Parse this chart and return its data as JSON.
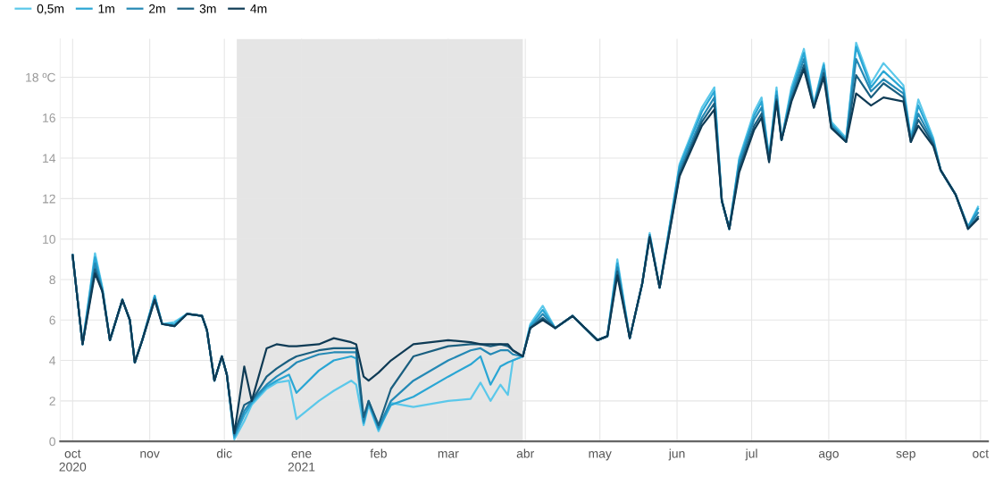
{
  "chart_data": {
    "type": "line",
    "x": [
      "2020-10-01",
      "2020-10-05",
      "2020-10-10",
      "2020-10-13",
      "2020-10-16",
      "2020-10-21",
      "2020-10-24",
      "2020-10-26",
      "2020-10-29",
      "2020-11-03",
      "2020-11-06",
      "2020-11-11",
      "2020-11-16",
      "2020-11-22",
      "2020-11-24",
      "2020-11-27",
      "2020-11-30",
      "2020-12-02",
      "2020-12-05",
      "2020-12-09",
      "2020-12-12",
      "2020-12-18",
      "2020-12-22",
      "2020-12-27",
      "2020-12-30",
      "2021-01-08",
      "2021-01-14",
      "2021-01-21",
      "2021-01-23",
      "2021-01-26",
      "2021-01-28",
      "2021-02-01",
      "2021-02-06",
      "2021-02-15",
      "2021-03-01",
      "2021-03-10",
      "2021-03-14",
      "2021-03-18",
      "2021-03-22",
      "2021-03-25",
      "2021-03-27",
      "2021-03-31",
      "2021-04-03",
      "2021-04-08",
      "2021-04-13",
      "2021-04-20",
      "2021-04-30",
      "2021-05-04",
      "2021-05-08",
      "2021-05-13",
      "2021-05-18",
      "2021-05-21",
      "2021-05-25",
      "2021-06-02",
      "2021-06-11",
      "2021-06-16",
      "2021-06-19",
      "2021-06-22",
      "2021-06-26",
      "2021-07-02",
      "2021-07-05",
      "2021-07-08",
      "2021-07-11",
      "2021-07-13",
      "2021-07-17",
      "2021-07-22",
      "2021-07-26",
      "2021-07-30",
      "2021-08-02",
      "2021-08-08",
      "2021-08-12",
      "2021-08-18",
      "2021-08-23",
      "2021-08-31",
      "2021-09-03",
      "2021-09-06",
      "2021-09-12",
      "2021-09-15",
      "2021-09-21",
      "2021-09-26",
      "2021-09-30"
    ],
    "series": [
      {
        "name": "0,5m",
        "color": "#5bc8ea",
        "values": [
          9.2,
          4.8,
          9.3,
          7.6,
          5.0,
          7.0,
          6.0,
          3.9,
          5.0,
          7.2,
          5.8,
          5.9,
          6.3,
          6.2,
          5.5,
          3.0,
          4.2,
          3.3,
          0.1,
          1.0,
          1.8,
          2.6,
          2.9,
          3.0,
          1.1,
          2.0,
          2.5,
          3.0,
          2.8,
          0.8,
          1.8,
          0.5,
          1.9,
          1.7,
          2.0,
          2.1,
          2.9,
          2.0,
          2.8,
          2.3,
          4.0,
          4.2,
          5.8,
          6.7,
          5.6,
          6.2,
          5.0,
          5.2,
          9.0,
          5.1,
          7.8,
          10.3,
          7.6,
          13.7,
          16.5,
          17.5,
          11.9,
          10.5,
          14.0,
          16.3,
          17.0,
          14.0,
          17.5,
          14.9,
          17.5,
          19.4,
          16.7,
          18.7,
          15.8,
          15.0,
          19.7,
          17.7,
          18.7,
          17.6,
          15.0,
          16.9,
          15.0,
          13.4,
          12.2,
          10.6,
          11.6
        ]
      },
      {
        "name": "1m",
        "color": "#2aa6d4",
        "values": [
          9.2,
          4.8,
          9.1,
          7.5,
          5.0,
          7.0,
          6.0,
          3.9,
          5.0,
          7.2,
          5.8,
          5.8,
          6.3,
          6.2,
          5.5,
          3.0,
          4.2,
          3.3,
          0.2,
          1.3,
          1.9,
          2.7,
          3.0,
          3.3,
          2.4,
          3.5,
          4.0,
          4.2,
          4.1,
          0.9,
          1.9,
          0.6,
          1.8,
          2.2,
          3.2,
          3.8,
          4.2,
          2.8,
          3.7,
          3.9,
          4.0,
          4.2,
          5.7,
          6.5,
          5.6,
          6.2,
          5.0,
          5.2,
          8.8,
          5.1,
          7.8,
          10.2,
          7.6,
          13.6,
          16.3,
          17.3,
          11.9,
          10.5,
          13.9,
          16.1,
          16.8,
          14.0,
          17.3,
          14.9,
          17.3,
          19.2,
          16.6,
          18.6,
          15.7,
          14.9,
          19.5,
          17.5,
          18.3,
          17.4,
          14.9,
          16.6,
          14.9,
          13.4,
          12.2,
          10.6,
          11.5
        ]
      },
      {
        "name": "2m",
        "color": "#2589b5",
        "values": [
          9.2,
          4.8,
          8.8,
          7.4,
          5.0,
          7.0,
          6.0,
          3.9,
          5.0,
          7.1,
          5.8,
          5.7,
          6.3,
          6.2,
          5.5,
          3.0,
          4.2,
          3.3,
          0.3,
          1.5,
          2.0,
          2.8,
          3.2,
          3.6,
          3.9,
          4.3,
          4.4,
          4.4,
          4.4,
          1.0,
          2.0,
          0.7,
          2.0,
          3.0,
          4.0,
          4.5,
          4.6,
          4.3,
          4.5,
          4.5,
          4.3,
          4.2,
          5.6,
          6.3,
          5.6,
          6.2,
          5.0,
          5.2,
          8.6,
          5.1,
          7.8,
          10.2,
          7.6,
          13.4,
          16.0,
          17.0,
          11.9,
          10.5,
          13.7,
          15.9,
          16.5,
          13.9,
          17.1,
          14.9,
          17.1,
          18.9,
          16.6,
          18.4,
          15.6,
          14.9,
          18.9,
          17.3,
          17.9,
          17.2,
          14.9,
          16.2,
          14.8,
          13.4,
          12.2,
          10.6,
          11.3
        ]
      },
      {
        "name": "3m",
        "color": "#1a5f80",
        "values": [
          9.2,
          4.8,
          8.5,
          7.4,
          5.0,
          7.0,
          6.0,
          3.9,
          5.0,
          7.0,
          5.8,
          5.7,
          6.3,
          6.2,
          5.5,
          3.0,
          4.2,
          3.3,
          0.4,
          1.8,
          2.0,
          3.2,
          3.6,
          4.0,
          4.2,
          4.5,
          4.6,
          4.6,
          4.6,
          1.2,
          2.0,
          0.8,
          2.6,
          4.2,
          4.7,
          4.8,
          4.8,
          4.7,
          4.8,
          4.7,
          4.5,
          4.2,
          5.6,
          6.1,
          5.6,
          6.2,
          5.0,
          5.2,
          8.4,
          5.1,
          7.8,
          10.1,
          7.6,
          13.2,
          15.8,
          16.7,
          11.9,
          10.5,
          13.5,
          15.6,
          16.2,
          13.9,
          16.9,
          14.9,
          16.9,
          18.6,
          16.5,
          18.2,
          15.5,
          14.8,
          18.1,
          17.0,
          17.7,
          17.0,
          14.8,
          15.9,
          14.7,
          13.4,
          12.2,
          10.5,
          11.1
        ]
      },
      {
        "name": "4m",
        "color": "#0f3b55",
        "values": [
          9.2,
          4.8,
          8.3,
          7.4,
          5.0,
          7.0,
          6.0,
          3.9,
          5.0,
          7.0,
          5.8,
          5.7,
          6.3,
          6.2,
          5.5,
          3.0,
          4.2,
          3.3,
          0.4,
          3.7,
          2.0,
          4.6,
          4.8,
          4.7,
          4.7,
          4.8,
          5.1,
          4.9,
          4.8,
          3.2,
          3.0,
          3.4,
          4.0,
          4.8,
          5.0,
          4.9,
          4.8,
          4.8,
          4.8,
          4.8,
          4.5,
          4.2,
          5.6,
          6.0,
          5.6,
          6.2,
          5.0,
          5.2,
          8.2,
          5.1,
          7.8,
          10.1,
          7.6,
          13.1,
          15.6,
          16.4,
          11.9,
          10.5,
          13.3,
          15.4,
          16.0,
          13.8,
          16.8,
          14.9,
          16.8,
          18.4,
          16.5,
          18.0,
          15.5,
          14.8,
          17.2,
          16.6,
          17.0,
          16.8,
          14.8,
          15.6,
          14.6,
          13.4,
          12.2,
          10.5,
          11.0
        ]
      }
    ],
    "xlim": [
      "2020-09-26",
      "2021-10-04"
    ],
    "xticks": [
      {
        "value": "2020-10-01",
        "label": "oct\n2020"
      },
      {
        "value": "2020-11-01",
        "label": "nov"
      },
      {
        "value": "2020-12-01",
        "label": "dic"
      },
      {
        "value": "2021-01-01",
        "label": "ene\n2021"
      },
      {
        "value": "2021-02-01",
        "label": "feb"
      },
      {
        "value": "2021-03-01",
        "label": "mar"
      },
      {
        "value": "2021-04-01",
        "label": "abr"
      },
      {
        "value": "2021-05-01",
        "label": "may"
      },
      {
        "value": "2021-06-01",
        "label": "jun"
      },
      {
        "value": "2021-07-01",
        "label": "jul"
      },
      {
        "value": "2021-08-01",
        "label": "ago"
      },
      {
        "value": "2021-09-01",
        "label": "sep"
      },
      {
        "value": "2021-10-01",
        "label": "oct"
      }
    ],
    "ylim": [
      0,
      19.9
    ],
    "yticks": [
      0,
      2,
      4,
      6,
      8,
      10,
      12,
      14,
      16,
      {
        "value": 18,
        "label": "18 ºC"
      }
    ],
    "bands": [
      {
        "axis": "x",
        "from": "2020-12-06",
        "to": "2021-03-31",
        "color": "#e5e5e5"
      }
    ],
    "grid": true,
    "legend": "top left",
    "marker": "none",
    "line_style": "solid"
  }
}
